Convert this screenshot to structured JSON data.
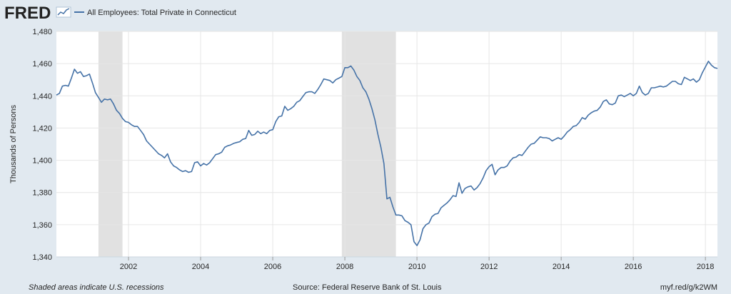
{
  "header": {
    "logo_text": "FRED",
    "logo_icon": "line-chart-icon",
    "legend_label": "All Employees: Total Private in Connecticut"
  },
  "footer": {
    "note": "Shaded areas indicate U.S. recessions",
    "source": "Source: Federal Reserve Bank of St. Louis",
    "link": "myf.red/g/k2WM"
  },
  "colors": {
    "background": "#e1e9f0",
    "plot_bg": "#ffffff",
    "line": "#4572a7",
    "recession": "#e1e1e1",
    "grid": "#e6e6e6"
  },
  "chart_data": {
    "type": "line",
    "title": "",
    "xlabel": "",
    "ylabel": "Thousands of Persons",
    "xlim": [
      "2000-01",
      "2018-05"
    ],
    "ylim": [
      1340,
      1480
    ],
    "yticks": [
      1340,
      1360,
      1380,
      1400,
      1420,
      1440,
      1460,
      1480
    ],
    "ytick_labels": [
      "1,340",
      "1,360",
      "1,380",
      "1,400",
      "1,420",
      "1,440",
      "1,460",
      "1,480"
    ],
    "xticks": [
      "2002-01",
      "2004-01",
      "2006-01",
      "2008-01",
      "2010-01",
      "2012-01",
      "2014-01",
      "2016-01",
      "2018-01"
    ],
    "xtick_labels": [
      "2002",
      "2004",
      "2006",
      "2008",
      "2010",
      "2012",
      "2014",
      "2016",
      "2018"
    ],
    "recessions": [
      [
        "2001-03",
        "2001-11"
      ],
      [
        "2007-12",
        "2009-06"
      ]
    ],
    "grid": true,
    "legend": "top-left",
    "series": [
      {
        "name": "All Employees: Total Private in Connecticut",
        "x": [
          "2000-01",
          "2000-02",
          "2000-03",
          "2000-04",
          "2000-05",
          "2000-06",
          "2000-07",
          "2000-08",
          "2000-09",
          "2000-10",
          "2000-11",
          "2000-12",
          "2001-01",
          "2001-02",
          "2001-03",
          "2001-04",
          "2001-05",
          "2001-06",
          "2001-07",
          "2001-08",
          "2001-09",
          "2001-10",
          "2001-11",
          "2001-12",
          "2002-01",
          "2002-02",
          "2002-03",
          "2002-04",
          "2002-05",
          "2002-06",
          "2002-07",
          "2002-08",
          "2002-09",
          "2002-10",
          "2002-11",
          "2002-12",
          "2003-01",
          "2003-02",
          "2003-03",
          "2003-04",
          "2003-05",
          "2003-06",
          "2003-07",
          "2003-08",
          "2003-09",
          "2003-10",
          "2003-11",
          "2003-12",
          "2004-01",
          "2004-02",
          "2004-03",
          "2004-04",
          "2004-05",
          "2004-06",
          "2004-07",
          "2004-08",
          "2004-09",
          "2004-10",
          "2004-11",
          "2004-12",
          "2005-01",
          "2005-02",
          "2005-03",
          "2005-04",
          "2005-05",
          "2005-06",
          "2005-07",
          "2005-08",
          "2005-09",
          "2005-10",
          "2005-11",
          "2005-12",
          "2006-01",
          "2006-02",
          "2006-03",
          "2006-04",
          "2006-05",
          "2006-06",
          "2006-07",
          "2006-08",
          "2006-09",
          "2006-10",
          "2006-11",
          "2006-12",
          "2007-01",
          "2007-02",
          "2007-03",
          "2007-04",
          "2007-05",
          "2007-06",
          "2007-07",
          "2007-08",
          "2007-09",
          "2007-10",
          "2007-11",
          "2007-12",
          "2008-01",
          "2008-02",
          "2008-03",
          "2008-04",
          "2008-05",
          "2008-06",
          "2008-07",
          "2008-08",
          "2008-09",
          "2008-10",
          "2008-11",
          "2008-12",
          "2009-01",
          "2009-02",
          "2009-03",
          "2009-04",
          "2009-05",
          "2009-06",
          "2009-07",
          "2009-08",
          "2009-09",
          "2009-10",
          "2009-11",
          "2009-12",
          "2010-01",
          "2010-02",
          "2010-03",
          "2010-04",
          "2010-05",
          "2010-06",
          "2010-07",
          "2010-08",
          "2010-09",
          "2010-10",
          "2010-11",
          "2010-12",
          "2011-01",
          "2011-02",
          "2011-03",
          "2011-04",
          "2011-05",
          "2011-06",
          "2011-07",
          "2011-08",
          "2011-09",
          "2011-10",
          "2011-11",
          "2011-12",
          "2012-01",
          "2012-02",
          "2012-03",
          "2012-04",
          "2012-05",
          "2012-06",
          "2012-07",
          "2012-08",
          "2012-09",
          "2012-10",
          "2012-11",
          "2012-12",
          "2013-01",
          "2013-02",
          "2013-03",
          "2013-04",
          "2013-05",
          "2013-06",
          "2013-07",
          "2013-08",
          "2013-09",
          "2013-10",
          "2013-11",
          "2013-12",
          "2014-01",
          "2014-02",
          "2014-03",
          "2014-04",
          "2014-05",
          "2014-06",
          "2014-07",
          "2014-08",
          "2014-09",
          "2014-10",
          "2014-11",
          "2014-12",
          "2015-01",
          "2015-02",
          "2015-03",
          "2015-04",
          "2015-05",
          "2015-06",
          "2015-07",
          "2015-08",
          "2015-09",
          "2015-10",
          "2015-11",
          "2015-12",
          "2016-01",
          "2016-02",
          "2016-03",
          "2016-04",
          "2016-05",
          "2016-06",
          "2016-07",
          "2016-08",
          "2016-09",
          "2016-10",
          "2016-11",
          "2016-12",
          "2017-01",
          "2017-02",
          "2017-03",
          "2017-04",
          "2017-05",
          "2017-06",
          "2017-07",
          "2017-08",
          "2017-09",
          "2017-10",
          "2017-11",
          "2017-12",
          "2018-01",
          "2018-02",
          "2018-03",
          "2018-04",
          "2018-05"
        ],
        "y": [
          1440.5,
          1441.5,
          1446.0,
          1446.5,
          1446.0,
          1451.0,
          1456.5,
          1454.0,
          1455.0,
          1452.0,
          1452.5,
          1453.5,
          1448.0,
          1442.0,
          1439.0,
          1436.0,
          1438.0,
          1437.5,
          1438.0,
          1435.0,
          1431.0,
          1429.0,
          1426.0,
          1424.0,
          1423.5,
          1422.0,
          1421.0,
          1421.0,
          1418.5,
          1416.0,
          1412.0,
          1410.0,
          1408.0,
          1406.0,
          1404.0,
          1403.0,
          1401.5,
          1404.0,
          1399.0,
          1396.5,
          1395.5,
          1394.0,
          1393.0,
          1393.5,
          1392.5,
          1393.0,
          1398.5,
          1399.0,
          1396.5,
          1398.0,
          1397.0,
          1398.5,
          1401.0,
          1403.5,
          1404.0,
          1405.0,
          1408.0,
          1409.0,
          1409.5,
          1410.5,
          1411.0,
          1411.5,
          1413.0,
          1413.5,
          1418.5,
          1415.5,
          1416.0,
          1418.0,
          1416.5,
          1417.5,
          1416.5,
          1418.5,
          1419.0,
          1424.0,
          1427.0,
          1427.5,
          1433.5,
          1431.0,
          1432.0,
          1433.5,
          1436.0,
          1437.0,
          1439.5,
          1442.0,
          1442.5,
          1442.5,
          1441.5,
          1444.0,
          1447.0,
          1450.5,
          1450.0,
          1449.5,
          1448.0,
          1450.0,
          1451.0,
          1452.0,
          1457.5,
          1457.5,
          1458.5,
          1456.0,
          1452.0,
          1449.5,
          1445.0,
          1442.5,
          1438.0,
          1432.0,
          1425.0,
          1416.0,
          1408.0,
          1398.0,
          1376.0,
          1377.0,
          1371.0,
          1366.0,
          1366.0,
          1365.5,
          1362.5,
          1361.5,
          1360.0,
          1349.5,
          1347.0,
          1350.5,
          1357.5,
          1360.0,
          1361.0,
          1365.0,
          1366.5,
          1367.0,
          1370.5,
          1372.0,
          1373.5,
          1375.5,
          1378.0,
          1377.5,
          1386.0,
          1379.5,
          1382.5,
          1383.5,
          1384.0,
          1381.5,
          1383.0,
          1385.5,
          1389.0,
          1393.5,
          1396.0,
          1397.5,
          1391.0,
          1394.0,
          1395.5,
          1395.5,
          1396.5,
          1399.5,
          1401.5,
          1402.0,
          1403.5,
          1403.0,
          1405.5,
          1408.0,
          1410.0,
          1410.5,
          1412.5,
          1414.5,
          1414.0,
          1414.0,
          1413.5,
          1412.0,
          1413.0,
          1414.0,
          1413.0,
          1415.0,
          1417.5,
          1419.0,
          1421.0,
          1421.5,
          1423.5,
          1426.5,
          1425.5,
          1428.0,
          1429.5,
          1430.5,
          1431.0,
          1433.0,
          1436.5,
          1437.5,
          1435.0,
          1434.5,
          1435.5,
          1440.0,
          1440.5,
          1439.5,
          1440.5,
          1441.5,
          1440.0,
          1441.5,
          1446.0,
          1442.0,
          1440.5,
          1441.5,
          1445.0,
          1445.0,
          1445.5,
          1446.0,
          1445.5,
          1446.0,
          1447.5,
          1449.0,
          1449.0,
          1447.5,
          1447.0,
          1451.5,
          1450.5,
          1449.5,
          1450.5,
          1448.5,
          1450.0,
          1454.5,
          1458.0,
          1461.5,
          1459.0,
          1457.5,
          1457.0
        ]
      }
    ]
  }
}
